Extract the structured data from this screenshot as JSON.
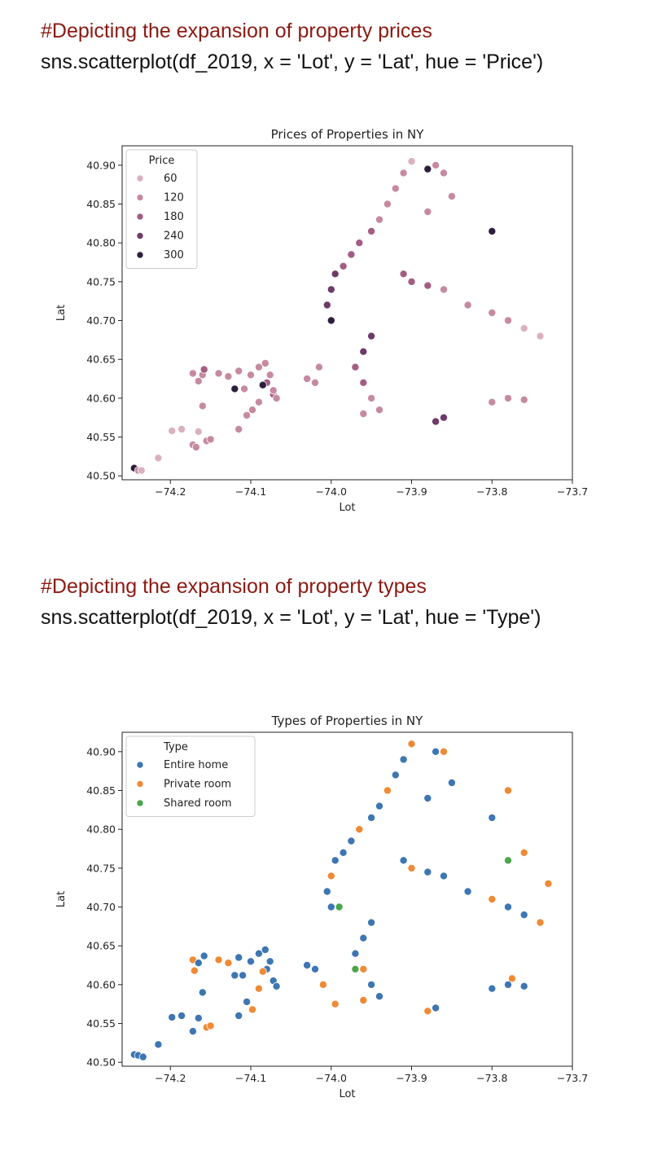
{
  "cells": [
    {
      "comment": "#Depicting the expansion of property prices",
      "code": "sns.scatterplot(df_2019, x = 'Lot', y = 'Lat', hue = 'Price')"
    },
    {
      "comment": "#Depicting the expansion of property types",
      "code": "sns.scatterplot(df_2019, x = 'Lot', y = 'Lat', hue = 'Type')"
    }
  ],
  "chart_data": [
    {
      "type": "scatter",
      "title": "Prices of Properties in NY",
      "xlabel": "Lot",
      "ylabel": "Lat",
      "xlim": [
        -74.26,
        -73.7
      ],
      "ylim": [
        40.495,
        40.925
      ],
      "xticks": [
        -74.2,
        -74.1,
        -74.0,
        -73.9,
        -73.8,
        -73.7
      ],
      "xtick_labels": [
        "−74.2",
        "−74.1",
        "−74.0",
        "−73.9",
        "−73.8",
        "−73.7"
      ],
      "yticks": [
        40.5,
        40.55,
        40.6,
        40.65,
        40.7,
        40.75,
        40.8,
        40.85,
        40.9
      ],
      "ytick_labels": [
        "40.50",
        "40.55",
        "40.60",
        "40.65",
        "40.70",
        "40.75",
        "40.80",
        "40.85",
        "40.90"
      ],
      "grid": false,
      "legend": {
        "title": "Price",
        "placement": "upper-left",
        "entries": [
          {
            "label": "60",
            "value": 60,
            "color": "#dbb1bf"
          },
          {
            "label": "120",
            "value": 120,
            "color": "#c68aa0"
          },
          {
            "label": "180",
            "value": 180,
            "color": "#a35d82"
          },
          {
            "label": "240",
            "value": 240,
            "color": "#6c3b69"
          },
          {
            "label": "300",
            "value": 300,
            "color": "#2d1e3e"
          }
        ]
      },
      "points": [
        {
          "x": -74.245,
          "y": 40.51,
          "price": 300
        },
        {
          "x": -74.24,
          "y": 40.507,
          "price": 120
        },
        {
          "x": -74.236,
          "y": 40.507,
          "price": 90
        },
        {
          "x": -74.215,
          "y": 40.523,
          "price": 80
        },
        {
          "x": -74.198,
          "y": 40.558,
          "price": 90
        },
        {
          "x": -74.186,
          "y": 40.56,
          "price": 80
        },
        {
          "x": -74.172,
          "y": 40.54,
          "price": 120
        },
        {
          "x": -74.168,
          "y": 40.537,
          "price": 140
        },
        {
          "x": -74.165,
          "y": 40.557,
          "price": 80
        },
        {
          "x": -74.16,
          "y": 40.59,
          "price": 120
        },
        {
          "x": -74.155,
          "y": 40.545,
          "price": 100
        },
        {
          "x": -74.15,
          "y": 40.547,
          "price": 120
        },
        {
          "x": -74.172,
          "y": 40.632,
          "price": 140
        },
        {
          "x": -74.16,
          "y": 40.63,
          "price": 120
        },
        {
          "x": -74.165,
          "y": 40.622,
          "price": 100
        },
        {
          "x": -74.158,
          "y": 40.637,
          "price": 160
        },
        {
          "x": -74.14,
          "y": 40.632,
          "price": 120
        },
        {
          "x": -74.128,
          "y": 40.628,
          "price": 100
        },
        {
          "x": -74.12,
          "y": 40.612,
          "price": 280
        },
        {
          "x": -74.115,
          "y": 40.635,
          "price": 120
        },
        {
          "x": -74.108,
          "y": 40.612,
          "price": 140
        },
        {
          "x": -74.115,
          "y": 40.56,
          "price": 120
        },
        {
          "x": -74.105,
          "y": 40.578,
          "price": 100
        },
        {
          "x": -74.098,
          "y": 40.585,
          "price": 140
        },
        {
          "x": -74.09,
          "y": 40.595,
          "price": 120
        },
        {
          "x": -74.1,
          "y": 40.63,
          "price": 100
        },
        {
          "x": -74.09,
          "y": 40.64,
          "price": 120
        },
        {
          "x": -74.082,
          "y": 40.645,
          "price": 140
        },
        {
          "x": -74.08,
          "y": 40.62,
          "price": 180
        },
        {
          "x": -74.076,
          "y": 40.63,
          "price": 120
        },
        {
          "x": -74.072,
          "y": 40.605,
          "price": 160
        },
        {
          "x": -74.068,
          "y": 40.6,
          "price": 140
        },
        {
          "x": -74.072,
          "y": 40.61,
          "price": 100
        },
        {
          "x": -74.085,
          "y": 40.617,
          "price": 300
        },
        {
          "x": -74.03,
          "y": 40.625,
          "price": 140
        },
        {
          "x": -74.02,
          "y": 40.62,
          "price": 100
        },
        {
          "x": -74.015,
          "y": 40.64,
          "price": 120
        },
        {
          "x": -74.0,
          "y": 40.7,
          "price": 280
        },
        {
          "x": -74.005,
          "y": 40.72,
          "price": 260
        },
        {
          "x": -74.0,
          "y": 40.74,
          "price": 250
        },
        {
          "x": -73.995,
          "y": 40.76,
          "price": 230
        },
        {
          "x": -73.985,
          "y": 40.77,
          "price": 210
        },
        {
          "x": -73.975,
          "y": 40.785,
          "price": 190
        },
        {
          "x": -73.965,
          "y": 40.8,
          "price": 170
        },
        {
          "x": -73.95,
          "y": 40.815,
          "price": 160
        },
        {
          "x": -73.94,
          "y": 40.83,
          "price": 140
        },
        {
          "x": -73.93,
          "y": 40.85,
          "price": 130
        },
        {
          "x": -73.92,
          "y": 40.87,
          "price": 120
        },
        {
          "x": -73.91,
          "y": 40.89,
          "price": 100
        },
        {
          "x": -73.9,
          "y": 40.905,
          "price": 90
        },
        {
          "x": -73.87,
          "y": 40.9,
          "price": 100
        },
        {
          "x": -73.86,
          "y": 40.89,
          "price": 120
        },
        {
          "x": -73.85,
          "y": 40.86,
          "price": 140
        },
        {
          "x": -73.88,
          "y": 40.84,
          "price": 120
        },
        {
          "x": -73.91,
          "y": 40.76,
          "price": 200
        },
        {
          "x": -73.9,
          "y": 40.75,
          "price": 180
        },
        {
          "x": -73.88,
          "y": 40.745,
          "price": 160
        },
        {
          "x": -73.86,
          "y": 40.74,
          "price": 140
        },
        {
          "x": -73.83,
          "y": 40.72,
          "price": 120
        },
        {
          "x": -73.8,
          "y": 40.71,
          "price": 110
        },
        {
          "x": -73.78,
          "y": 40.7,
          "price": 100
        },
        {
          "x": -73.76,
          "y": 40.69,
          "price": 90
        },
        {
          "x": -73.74,
          "y": 40.68,
          "price": 80
        },
        {
          "x": -73.95,
          "y": 40.68,
          "price": 260
        },
        {
          "x": -73.96,
          "y": 40.66,
          "price": 240
        },
        {
          "x": -73.97,
          "y": 40.64,
          "price": 200
        },
        {
          "x": -73.96,
          "y": 40.62,
          "price": 180
        },
        {
          "x": -73.95,
          "y": 40.6,
          "price": 150
        },
        {
          "x": -73.94,
          "y": 40.585,
          "price": 120
        },
        {
          "x": -73.96,
          "y": 40.58,
          "price": 100
        },
        {
          "x": -73.87,
          "y": 40.57,
          "price": 250
        },
        {
          "x": -73.86,
          "y": 40.575,
          "price": 230
        },
        {
          "x": -73.8,
          "y": 40.595,
          "price": 140
        },
        {
          "x": -73.78,
          "y": 40.6,
          "price": 120
        },
        {
          "x": -73.76,
          "y": 40.598,
          "price": 130
        },
        {
          "x": -73.8,
          "y": 40.815,
          "price": 300
        },
        {
          "x": -73.88,
          "y": 40.895,
          "price": 300
        }
      ]
    },
    {
      "type": "scatter",
      "title": "Types of Properties in NY",
      "xlabel": "Lot",
      "ylabel": "Lat",
      "xlim": [
        -74.26,
        -73.7
      ],
      "ylim": [
        40.495,
        40.925
      ],
      "xticks": [
        -74.2,
        -74.1,
        -74.0,
        -73.9,
        -73.8,
        -73.7
      ],
      "xtick_labels": [
        "−74.2",
        "−74.1",
        "−74.0",
        "−73.9",
        "−73.8",
        "−73.7"
      ],
      "yticks": [
        40.5,
        40.55,
        40.6,
        40.65,
        40.7,
        40.75,
        40.8,
        40.85,
        40.9
      ],
      "ytick_labels": [
        "40.50",
        "40.55",
        "40.60",
        "40.65",
        "40.70",
        "40.75",
        "40.80",
        "40.85",
        "40.90"
      ],
      "grid": false,
      "legend": {
        "title": "Type",
        "placement": "upper-left",
        "entries": [
          {
            "label": "Entire home",
            "color": "#3d76b3"
          },
          {
            "label": "Private room",
            "color": "#ef8a35"
          },
          {
            "label": "Shared room",
            "color": "#4ba54a"
          }
        ]
      },
      "points": [
        {
          "x": -74.245,
          "y": 40.51,
          "type": "Entire home"
        },
        {
          "x": -74.24,
          "y": 40.509,
          "type": "Entire home"
        },
        {
          "x": -74.234,
          "y": 40.507,
          "type": "Entire home"
        },
        {
          "x": -74.215,
          "y": 40.523,
          "type": "Entire home"
        },
        {
          "x": -74.198,
          "y": 40.558,
          "type": "Entire home"
        },
        {
          "x": -74.186,
          "y": 40.56,
          "type": "Entire home"
        },
        {
          "x": -74.172,
          "y": 40.54,
          "type": "Entire home"
        },
        {
          "x": -74.165,
          "y": 40.557,
          "type": "Entire home"
        },
        {
          "x": -74.16,
          "y": 40.59,
          "type": "Entire home"
        },
        {
          "x": -74.155,
          "y": 40.545,
          "type": "Private room"
        },
        {
          "x": -74.15,
          "y": 40.547,
          "type": "Private room"
        },
        {
          "x": -74.172,
          "y": 40.632,
          "type": "Private room"
        },
        {
          "x": -74.165,
          "y": 40.628,
          "type": "Entire home"
        },
        {
          "x": -74.17,
          "y": 40.618,
          "type": "Private room"
        },
        {
          "x": -74.158,
          "y": 40.637,
          "type": "Entire home"
        },
        {
          "x": -74.14,
          "y": 40.632,
          "type": "Private room"
        },
        {
          "x": -74.128,
          "y": 40.628,
          "type": "Private room"
        },
        {
          "x": -74.12,
          "y": 40.612,
          "type": "Entire home"
        },
        {
          "x": -74.115,
          "y": 40.635,
          "type": "Entire home"
        },
        {
          "x": -74.11,
          "y": 40.612,
          "type": "Entire home"
        },
        {
          "x": -74.115,
          "y": 40.56,
          "type": "Entire home"
        },
        {
          "x": -74.105,
          "y": 40.578,
          "type": "Entire home"
        },
        {
          "x": -74.098,
          "y": 40.568,
          "type": "Private room"
        },
        {
          "x": -74.09,
          "y": 40.595,
          "type": "Private room"
        },
        {
          "x": -74.1,
          "y": 40.63,
          "type": "Entire home"
        },
        {
          "x": -74.09,
          "y": 40.64,
          "type": "Entire home"
        },
        {
          "x": -74.082,
          "y": 40.645,
          "type": "Entire home"
        },
        {
          "x": -74.08,
          "y": 40.62,
          "type": "Entire home"
        },
        {
          "x": -74.076,
          "y": 40.63,
          "type": "Entire home"
        },
        {
          "x": -74.072,
          "y": 40.605,
          "type": "Entire home"
        },
        {
          "x": -74.068,
          "y": 40.598,
          "type": "Entire home"
        },
        {
          "x": -74.085,
          "y": 40.617,
          "type": "Private room"
        },
        {
          "x": -74.03,
          "y": 40.625,
          "type": "Entire home"
        },
        {
          "x": -74.02,
          "y": 40.62,
          "type": "Entire home"
        },
        {
          "x": -74.01,
          "y": 40.6,
          "type": "Private room"
        },
        {
          "x": -73.995,
          "y": 40.575,
          "type": "Private room"
        },
        {
          "x": -74.0,
          "y": 40.7,
          "type": "Entire home"
        },
        {
          "x": -74.005,
          "y": 40.72,
          "type": "Entire home"
        },
        {
          "x": -74.0,
          "y": 40.74,
          "type": "Private room"
        },
        {
          "x": -73.995,
          "y": 40.76,
          "type": "Entire home"
        },
        {
          "x": -73.985,
          "y": 40.77,
          "type": "Entire home"
        },
        {
          "x": -73.99,
          "y": 40.7,
          "type": "Shared room"
        },
        {
          "x": -73.975,
          "y": 40.785,
          "type": "Entire home"
        },
        {
          "x": -73.965,
          "y": 40.8,
          "type": "Private room"
        },
        {
          "x": -73.95,
          "y": 40.815,
          "type": "Entire home"
        },
        {
          "x": -73.94,
          "y": 40.83,
          "type": "Entire home"
        },
        {
          "x": -73.93,
          "y": 40.85,
          "type": "Private room"
        },
        {
          "x": -73.92,
          "y": 40.87,
          "type": "Entire home"
        },
        {
          "x": -73.91,
          "y": 40.89,
          "type": "Entire home"
        },
        {
          "x": -73.9,
          "y": 40.91,
          "type": "Private room"
        },
        {
          "x": -73.87,
          "y": 40.9,
          "type": "Entire home"
        },
        {
          "x": -73.86,
          "y": 40.9,
          "type": "Private room"
        },
        {
          "x": -73.85,
          "y": 40.86,
          "type": "Entire home"
        },
        {
          "x": -73.88,
          "y": 40.84,
          "type": "Entire home"
        },
        {
          "x": -73.91,
          "y": 40.76,
          "type": "Entire home"
        },
        {
          "x": -73.9,
          "y": 40.75,
          "type": "Private room"
        },
        {
          "x": -73.88,
          "y": 40.745,
          "type": "Entire home"
        },
        {
          "x": -73.86,
          "y": 40.74,
          "type": "Entire home"
        },
        {
          "x": -73.83,
          "y": 40.72,
          "type": "Entire home"
        },
        {
          "x": -73.8,
          "y": 40.71,
          "type": "Private room"
        },
        {
          "x": -73.78,
          "y": 40.7,
          "type": "Entire home"
        },
        {
          "x": -73.76,
          "y": 40.69,
          "type": "Entire home"
        },
        {
          "x": -73.74,
          "y": 40.68,
          "type": "Private room"
        },
        {
          "x": -73.73,
          "y": 40.73,
          "type": "Private room"
        },
        {
          "x": -73.76,
          "y": 40.77,
          "type": "Private room"
        },
        {
          "x": -73.78,
          "y": 40.76,
          "type": "Shared room"
        },
        {
          "x": -73.95,
          "y": 40.68,
          "type": "Entire home"
        },
        {
          "x": -73.96,
          "y": 40.66,
          "type": "Entire home"
        },
        {
          "x": -73.97,
          "y": 40.64,
          "type": "Entire home"
        },
        {
          "x": -73.96,
          "y": 40.62,
          "type": "Private room"
        },
        {
          "x": -73.95,
          "y": 40.6,
          "type": "Entire home"
        },
        {
          "x": -73.94,
          "y": 40.585,
          "type": "Entire home"
        },
        {
          "x": -73.96,
          "y": 40.58,
          "type": "Private room"
        },
        {
          "x": -73.97,
          "y": 40.62,
          "type": "Shared room"
        },
        {
          "x": -73.87,
          "y": 40.57,
          "type": "Entire home"
        },
        {
          "x": -73.88,
          "y": 40.566,
          "type": "Private room"
        },
        {
          "x": -73.8,
          "y": 40.595,
          "type": "Entire home"
        },
        {
          "x": -73.78,
          "y": 40.6,
          "type": "Entire home"
        },
        {
          "x": -73.76,
          "y": 40.598,
          "type": "Entire home"
        },
        {
          "x": -73.775,
          "y": 40.608,
          "type": "Private room"
        },
        {
          "x": -73.8,
          "y": 40.815,
          "type": "Entire home"
        },
        {
          "x": -73.78,
          "y": 40.85,
          "type": "Private room"
        }
      ]
    }
  ]
}
